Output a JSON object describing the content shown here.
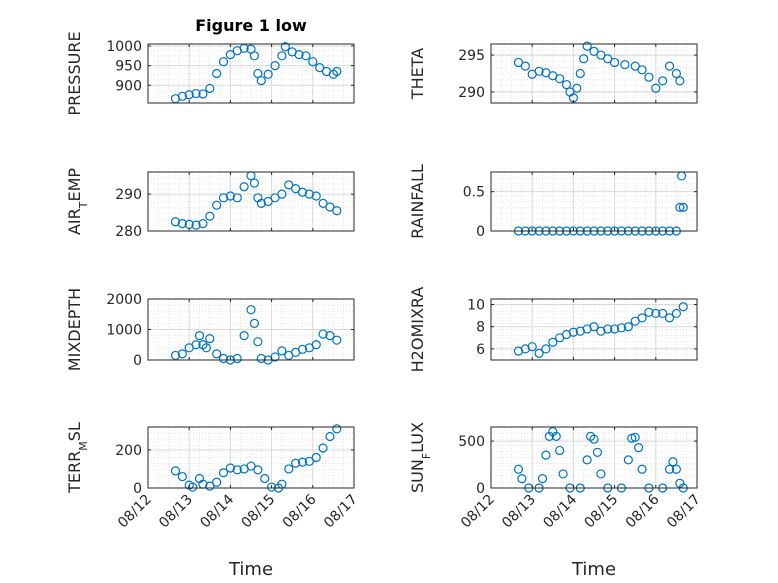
{
  "figure": {
    "title": "Figure 1 low",
    "marker_color": "#0072bd",
    "grid": true,
    "xlabel": "Time",
    "date_ticks": [
      "08/12",
      "08/13",
      "08/14",
      "08/15",
      "08/16",
      "08/17"
    ]
  },
  "chart_data": [
    {
      "type": "scatter",
      "ylabel": "PRESSURE",
      "ylabel_sub": "",
      "ylabel_tail": "",
      "xlim": [
        "08/12",
        "08/17"
      ],
      "ylim": [
        855,
        1005
      ],
      "yticks": [
        900,
        950,
        1000
      ],
      "points": [
        [
          "08/12 16:00",
          866
        ],
        [
          "08/12 20:00",
          872
        ],
        [
          "08/13 00:00",
          876
        ],
        [
          "08/13 04:00",
          879
        ],
        [
          "08/13 08:00",
          878
        ],
        [
          "08/13 12:00",
          892
        ],
        [
          "08/13 16:00",
          930
        ],
        [
          "08/13 20:00",
          960
        ],
        [
          "08/14 00:00",
          978
        ],
        [
          "08/14 04:00",
          988
        ],
        [
          "08/14 08:00",
          994
        ],
        [
          "08/14 12:00",
          992
        ],
        [
          "08/14 14:00",
          975
        ],
        [
          "08/14 16:00",
          930
        ],
        [
          "08/14 18:00",
          912
        ],
        [
          "08/14 22:00",
          928
        ],
        [
          "08/15 02:00",
          950
        ],
        [
          "08/15 06:00",
          975
        ],
        [
          "08/15 08:00",
          998
        ],
        [
          "08/15 12:00",
          985
        ],
        [
          "08/15 16:00",
          978
        ],
        [
          "08/15 20:00",
          975
        ],
        [
          "08/16 00:00",
          960
        ],
        [
          "08/16 04:00",
          945
        ],
        [
          "08/16 08:00",
          935
        ],
        [
          "08/16 12:00",
          928
        ],
        [
          "08/16 14:00",
          935
        ]
      ]
    },
    {
      "type": "scatter",
      "ylabel": "THETA",
      "ylabel_sub": "",
      "ylabel_tail": "",
      "xlim": [
        "08/12",
        "08/17"
      ],
      "ylim": [
        288.5,
        296.5
      ],
      "yticks": [
        290,
        295
      ],
      "points": [
        [
          "08/12 16:00",
          294
        ],
        [
          "08/12 20:00",
          293.5
        ],
        [
          "08/13 00:00",
          292.4
        ],
        [
          "08/13 04:00",
          292.8
        ],
        [
          "08/13 08:00",
          292.6
        ],
        [
          "08/13 12:00",
          292.2
        ],
        [
          "08/13 16:00",
          291.8
        ],
        [
          "08/13 20:00",
          291
        ],
        [
          "08/13 22:00",
          290
        ],
        [
          "08/14 00:00",
          289.2
        ],
        [
          "08/14 02:00",
          290.5
        ],
        [
          "08/14 04:00",
          292.5
        ],
        [
          "08/14 06:00",
          294.5
        ],
        [
          "08/14 08:00",
          296.2
        ],
        [
          "08/14 12:00",
          295.5
        ],
        [
          "08/14 16:00",
          295
        ],
        [
          "08/14 20:00",
          294.5
        ],
        [
          "08/15 00:00",
          294
        ],
        [
          "08/15 06:00",
          293.7
        ],
        [
          "08/15 12:00",
          293.5
        ],
        [
          "08/15 16:00",
          293
        ],
        [
          "08/15 20:00",
          292
        ],
        [
          "08/16 00:00",
          290.5
        ],
        [
          "08/16 04:00",
          291.5
        ],
        [
          "08/16 08:00",
          293.5
        ],
        [
          "08/16 12:00",
          292.5
        ],
        [
          "08/16 14:00",
          291.5
        ]
      ]
    },
    {
      "type": "scatter",
      "ylabel": "AIR",
      "ylabel_sub": "T",
      "ylabel_tail": "EMP",
      "xlim": [
        "08/12",
        "08/17"
      ],
      "ylim": [
        280,
        296
      ],
      "yticks": [
        280,
        290
      ],
      "points": [
        [
          "08/12 16:00",
          282.5
        ],
        [
          "08/12 20:00",
          282
        ],
        [
          "08/13 00:00",
          281.8
        ],
        [
          "08/13 04:00",
          281.6
        ],
        [
          "08/13 08:00",
          282
        ],
        [
          "08/13 12:00",
          284
        ],
        [
          "08/13 16:00",
          287
        ],
        [
          "08/13 20:00",
          289
        ],
        [
          "08/14 00:00",
          289.5
        ],
        [
          "08/14 04:00",
          289
        ],
        [
          "08/14 08:00",
          292
        ],
        [
          "08/14 12:00",
          295
        ],
        [
          "08/14 14:00",
          293
        ],
        [
          "08/14 16:00",
          289
        ],
        [
          "08/14 18:00",
          287.5
        ],
        [
          "08/14 22:00",
          288
        ],
        [
          "08/15 02:00",
          289
        ],
        [
          "08/15 06:00",
          290
        ],
        [
          "08/15 10:00",
          292.5
        ],
        [
          "08/15 14:00",
          291.5
        ],
        [
          "08/15 18:00",
          290.5
        ],
        [
          "08/15 22:00",
          290
        ],
        [
          "08/16 02:00",
          289.5
        ],
        [
          "08/16 06:00",
          287.5
        ],
        [
          "08/16 10:00",
          286.5
        ],
        [
          "08/16 14:00",
          285.5
        ]
      ]
    },
    {
      "type": "scatter",
      "ylabel": "RAINFALL",
      "ylabel_sub": "",
      "ylabel_tail": "",
      "xlim": [
        "08/12",
        "08/17"
      ],
      "ylim": [
        0,
        0.75
      ],
      "yticks": [
        0,
        0.5
      ],
      "points": [
        [
          "08/12 16:00",
          0
        ],
        [
          "08/12 20:00",
          0
        ],
        [
          "08/13 00:00",
          0
        ],
        [
          "08/13 04:00",
          0
        ],
        [
          "08/13 08:00",
          0
        ],
        [
          "08/13 12:00",
          0
        ],
        [
          "08/13 16:00",
          0
        ],
        [
          "08/13 20:00",
          0
        ],
        [
          "08/14 00:00",
          0
        ],
        [
          "08/14 04:00",
          0
        ],
        [
          "08/14 08:00",
          0
        ],
        [
          "08/14 12:00",
          0
        ],
        [
          "08/14 16:00",
          0
        ],
        [
          "08/14 20:00",
          0
        ],
        [
          "08/15 00:00",
          0
        ],
        [
          "08/15 04:00",
          0
        ],
        [
          "08/15 08:00",
          0
        ],
        [
          "08/15 12:00",
          0
        ],
        [
          "08/15 16:00",
          0
        ],
        [
          "08/15 20:00",
          0
        ],
        [
          "08/16 00:00",
          0
        ],
        [
          "08/16 04:00",
          0
        ],
        [
          "08/16 08:00",
          0
        ],
        [
          "08/16 12:00",
          0
        ],
        [
          "08/16 14:00",
          0.3
        ],
        [
          "08/16 16:00",
          0.3
        ],
        [
          "08/16 15:00",
          0.7
        ]
      ]
    },
    {
      "type": "scatter",
      "ylabel": "MIXDEPTH",
      "ylabel_sub": "",
      "ylabel_tail": "",
      "xlim": [
        "08/12",
        "08/17"
      ],
      "ylim": [
        0,
        2000
      ],
      "yticks": [
        0,
        1000,
        2000
      ],
      "points": [
        [
          "08/12 16:00",
          150
        ],
        [
          "08/12 20:00",
          200
        ],
        [
          "08/13 00:00",
          400
        ],
        [
          "08/13 04:00",
          500
        ],
        [
          "08/13 06:00",
          800
        ],
        [
          "08/13 08:00",
          500
        ],
        [
          "08/13 10:00",
          400
        ],
        [
          "08/13 12:00",
          700
        ],
        [
          "08/13 16:00",
          200
        ],
        [
          "08/13 20:00",
          50
        ],
        [
          "08/14 00:00",
          0
        ],
        [
          "08/14 04:00",
          50
        ],
        [
          "08/14 08:00",
          800
        ],
        [
          "08/14 12:00",
          1650
        ],
        [
          "08/14 14:00",
          1200
        ],
        [
          "08/14 16:00",
          600
        ],
        [
          "08/14 18:00",
          50
        ],
        [
          "08/14 22:00",
          0
        ],
        [
          "08/15 02:00",
          100
        ],
        [
          "08/15 06:00",
          300
        ],
        [
          "08/15 10:00",
          150
        ],
        [
          "08/15 14:00",
          250
        ],
        [
          "08/15 18:00",
          350
        ],
        [
          "08/15 22:00",
          400
        ],
        [
          "08/16 02:00",
          500
        ],
        [
          "08/16 06:00",
          850
        ],
        [
          "08/16 10:00",
          800
        ],
        [
          "08/16 14:00",
          650
        ]
      ]
    },
    {
      "type": "scatter",
      "ylabel": "H2OMIXRA",
      "ylabel_sub": "",
      "ylabel_tail": "",
      "xlim": [
        "08/12",
        "08/17"
      ],
      "ylim": [
        5,
        10.5
      ],
      "yticks": [
        6,
        8,
        10
      ],
      "points": [
        [
          "08/12 16:00",
          5.8
        ],
        [
          "08/12 20:00",
          6
        ],
        [
          "08/13 00:00",
          6.2
        ],
        [
          "08/13 04:00",
          5.6
        ],
        [
          "08/13 08:00",
          6
        ],
        [
          "08/13 12:00",
          6.6
        ],
        [
          "08/13 16:00",
          7
        ],
        [
          "08/13 20:00",
          7.3
        ],
        [
          "08/14 00:00",
          7.5
        ],
        [
          "08/14 04:00",
          7.6
        ],
        [
          "08/14 08:00",
          7.8
        ],
        [
          "08/14 12:00",
          8
        ],
        [
          "08/14 16:00",
          7.6
        ],
        [
          "08/14 20:00",
          7.8
        ],
        [
          "08/15 00:00",
          7.8
        ],
        [
          "08/15 04:00",
          7.9
        ],
        [
          "08/15 08:00",
          8
        ],
        [
          "08/15 12:00",
          8.5
        ],
        [
          "08/15 16:00",
          8.8
        ],
        [
          "08/15 20:00",
          9.3
        ],
        [
          "08/16 00:00",
          9.2
        ],
        [
          "08/16 04:00",
          9.2
        ],
        [
          "08/16 08:00",
          8.8
        ],
        [
          "08/16 12:00",
          9.2
        ],
        [
          "08/16 16:00",
          9.8
        ]
      ]
    },
    {
      "type": "scatter",
      "ylabel": "TERR",
      "ylabel_sub": "M",
      "ylabel_tail": "SL",
      "xlim": [
        "08/12",
        "08/17"
      ],
      "ylim": [
        0,
        320
      ],
      "yticks": [
        0,
        200
      ],
      "points": [
        [
          "08/12 16:00",
          90
        ],
        [
          "08/12 20:00",
          60
        ],
        [
          "08/13 00:00",
          15
        ],
        [
          "08/13 02:00",
          5
        ],
        [
          "08/13 06:00",
          50
        ],
        [
          "08/13 08:00",
          20
        ],
        [
          "08/13 12:00",
          10
        ],
        [
          "08/13 16:00",
          30
        ],
        [
          "08/13 20:00",
          80
        ],
        [
          "08/14 00:00",
          105
        ],
        [
          "08/14 04:00",
          95
        ],
        [
          "08/14 08:00",
          100
        ],
        [
          "08/14 12:00",
          115
        ],
        [
          "08/14 16:00",
          95
        ],
        [
          "08/14 20:00",
          50
        ],
        [
          "08/15 00:00",
          5
        ],
        [
          "08/15 04:00",
          0
        ],
        [
          "08/15 06:00",
          20
        ],
        [
          "08/15 10:00",
          100
        ],
        [
          "08/15 14:00",
          130
        ],
        [
          "08/15 18:00",
          135
        ],
        [
          "08/15 22:00",
          140
        ],
        [
          "08/16 02:00",
          160
        ],
        [
          "08/16 06:00",
          210
        ],
        [
          "08/16 10:00",
          270
        ],
        [
          "08/16 14:00",
          310
        ]
      ]
    },
    {
      "type": "scatter",
      "ylabel": "SUN",
      "ylabel_sub": "F",
      "ylabel_tail": "LUX",
      "xlim": [
        "08/12",
        "08/17"
      ],
      "ylim": [
        0,
        650
      ],
      "yticks": [
        0,
        500
      ],
      "points": [
        [
          "08/12 16:00",
          200
        ],
        [
          "08/12 18:00",
          100
        ],
        [
          "08/12 22:00",
          0
        ],
        [
          "08/13 04:00",
          0
        ],
        [
          "08/13 06:00",
          100
        ],
        [
          "08/13 08:00",
          350
        ],
        [
          "08/13 10:00",
          550
        ],
        [
          "08/13 12:00",
          600
        ],
        [
          "08/13 14:00",
          550
        ],
        [
          "08/13 16:00",
          400
        ],
        [
          "08/13 18:00",
          150
        ],
        [
          "08/13 22:00",
          0
        ],
        [
          "08/14 04:00",
          0
        ],
        [
          "08/14 08:00",
          300
        ],
        [
          "08/14 10:00",
          550
        ],
        [
          "08/14 12:00",
          520
        ],
        [
          "08/14 14:00",
          380
        ],
        [
          "08/14 16:00",
          150
        ],
        [
          "08/14 20:00",
          0
        ],
        [
          "08/15 04:00",
          0
        ],
        [
          "08/15 08:00",
          300
        ],
        [
          "08/15 10:00",
          530
        ],
        [
          "08/15 12:00",
          540
        ],
        [
          "08/15 14:00",
          430
        ],
        [
          "08/15 16:00",
          200
        ],
        [
          "08/15 20:00",
          0
        ],
        [
          "08/16 04:00",
          0
        ],
        [
          "08/16 08:00",
          200
        ],
        [
          "08/16 10:00",
          280
        ],
        [
          "08/16 12:00",
          200
        ],
        [
          "08/16 14:00",
          50
        ],
        [
          "08/16 16:00",
          0
        ]
      ]
    }
  ]
}
